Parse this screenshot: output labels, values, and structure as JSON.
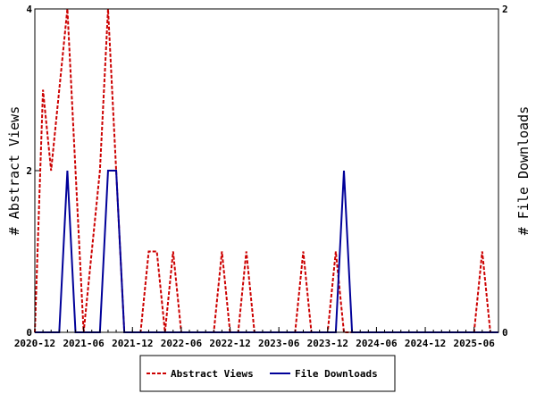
{
  "chart_data": {
    "type": "line",
    "x_tick_labels": [
      "2020-12",
      "2021-06",
      "2021-12",
      "2022-06",
      "2022-12",
      "2023-06",
      "2023-12",
      "2024-06",
      "2024-12",
      "2025-06"
    ],
    "xlim": [
      "2020-12",
      "2025-09"
    ],
    "left_axis": {
      "label": "# Abstract Views",
      "ylim": [
        0,
        4
      ],
      "ticks": [
        "0",
        "2",
        "4"
      ]
    },
    "right_axis": {
      "label": "# File Downloads",
      "ylim": [
        0,
        2
      ],
      "ticks": [
        "0",
        "2"
      ]
    },
    "legend_position": "bottom-center",
    "series": [
      {
        "name": "Abstract Views",
        "axis": "left",
        "color": "#cc0000",
        "dash": "dashed",
        "x": [
          "2020-12",
          "2021-01",
          "2021-02",
          "2021-03",
          "2021-04",
          "2021-05",
          "2021-06",
          "2021-07",
          "2021-08",
          "2021-09",
          "2021-10",
          "2021-11",
          "2021-12",
          "2022-01",
          "2022-02",
          "2022-03",
          "2022-04",
          "2022-05",
          "2022-06",
          "2022-07",
          "2022-08",
          "2022-09",
          "2022-10",
          "2022-11",
          "2022-12",
          "2023-01",
          "2023-02",
          "2023-03",
          "2023-04",
          "2023-05",
          "2023-06",
          "2023-07",
          "2023-08",
          "2023-09",
          "2023-10",
          "2023-11",
          "2023-12",
          "2024-01",
          "2024-02",
          "2024-03",
          "2024-04",
          "2024-05",
          "2024-06",
          "2024-07",
          "2024-08",
          "2024-09",
          "2024-10",
          "2024-11",
          "2024-12",
          "2025-01",
          "2025-02",
          "2025-03",
          "2025-04",
          "2025-05",
          "2025-06",
          "2025-07",
          "2025-08",
          "2025-09"
        ],
        "values": [
          0,
          3,
          2,
          3,
          4,
          2,
          0,
          1,
          2,
          4,
          2,
          0,
          0,
          0,
          1,
          1,
          0,
          1,
          0,
          0,
          0,
          0,
          0,
          1,
          0,
          0,
          1,
          0,
          0,
          0,
          0,
          0,
          0,
          1,
          0,
          0,
          0,
          1,
          0,
          0,
          0,
          0,
          0,
          0,
          0,
          0,
          0,
          0,
          0,
          0,
          0,
          0,
          0,
          0,
          0,
          1,
          0,
          0
        ]
      },
      {
        "name": "File Downloads",
        "axis": "right",
        "color": "#000099",
        "dash": "solid",
        "x": [
          "2020-12",
          "2021-01",
          "2021-02",
          "2021-03",
          "2021-04",
          "2021-05",
          "2021-06",
          "2021-07",
          "2021-08",
          "2021-09",
          "2021-10",
          "2021-11",
          "2021-12",
          "2022-01",
          "2022-02",
          "2022-03",
          "2022-04",
          "2022-05",
          "2022-06",
          "2022-07",
          "2022-08",
          "2022-09",
          "2022-10",
          "2022-11",
          "2022-12",
          "2023-01",
          "2023-02",
          "2023-03",
          "2023-04",
          "2023-05",
          "2023-06",
          "2023-07",
          "2023-08",
          "2023-09",
          "2023-10",
          "2023-11",
          "2023-12",
          "2024-01",
          "2024-02",
          "2024-03",
          "2024-04",
          "2024-05",
          "2024-06",
          "2024-07",
          "2024-08",
          "2024-09",
          "2024-10",
          "2024-11",
          "2024-12",
          "2025-01",
          "2025-02",
          "2025-03",
          "2025-04",
          "2025-05",
          "2025-06",
          "2025-07",
          "2025-08",
          "2025-09"
        ],
        "values": [
          0,
          0,
          0,
          0,
          1,
          0,
          0,
          0,
          0,
          1,
          1,
          0,
          0,
          0,
          0,
          0,
          0,
          0,
          0,
          0,
          0,
          0,
          0,
          0,
          0,
          0,
          0,
          0,
          0,
          0,
          0,
          0,
          0,
          0,
          0,
          0,
          0,
          0,
          1,
          0,
          0,
          0,
          0,
          0,
          0,
          0,
          0,
          0,
          0,
          0,
          0,
          0,
          0,
          0,
          0,
          0,
          0,
          0
        ]
      }
    ]
  }
}
